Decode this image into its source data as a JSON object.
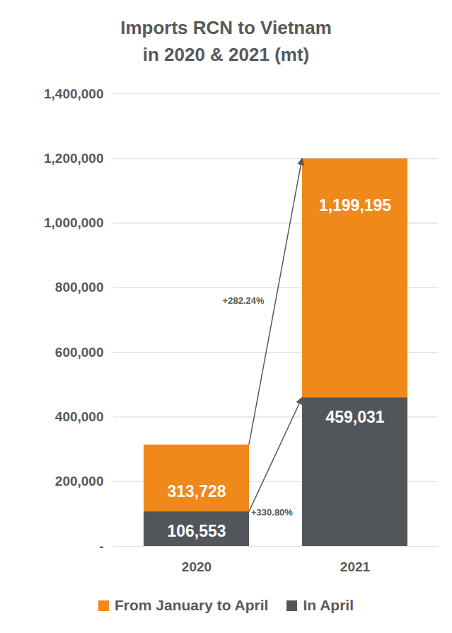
{
  "chart_data": {
    "type": "bar",
    "title": "Imports RCN to Vietnam\nin 2020 & 2021 (mt)",
    "categories": [
      "2020",
      "2021"
    ],
    "series": [
      {
        "name": "From January to April",
        "color": "#F0881A",
        "values": [
          313728,
          1199195
        ],
        "value_labels": [
          "313,728",
          "1,199,195"
        ]
      },
      {
        "name": "In April",
        "color": "#52565B",
        "values": [
          106553,
          459031
        ],
        "value_labels": [
          "106,553",
          "459,031"
        ]
      }
    ],
    "annotations": [
      "+282.24%",
      "+330.80%"
    ],
    "ylim": [
      0,
      1400000
    ],
    "yticks": [
      {
        "value": 0,
        "label": "-"
      },
      {
        "value": 200000,
        "label": "200,000"
      },
      {
        "value": 400000,
        "label": "400,000"
      },
      {
        "value": 600000,
        "label": "600,000"
      },
      {
        "value": 800000,
        "label": "800,000"
      },
      {
        "value": 1000000,
        "label": "1,000,000"
      },
      {
        "value": 1200000,
        "label": "1,200,000"
      },
      {
        "value": 1400000,
        "label": "1,400,000"
      }
    ],
    "grid": true,
    "stacked": false,
    "data_labels": true,
    "legend": "bottom"
  }
}
